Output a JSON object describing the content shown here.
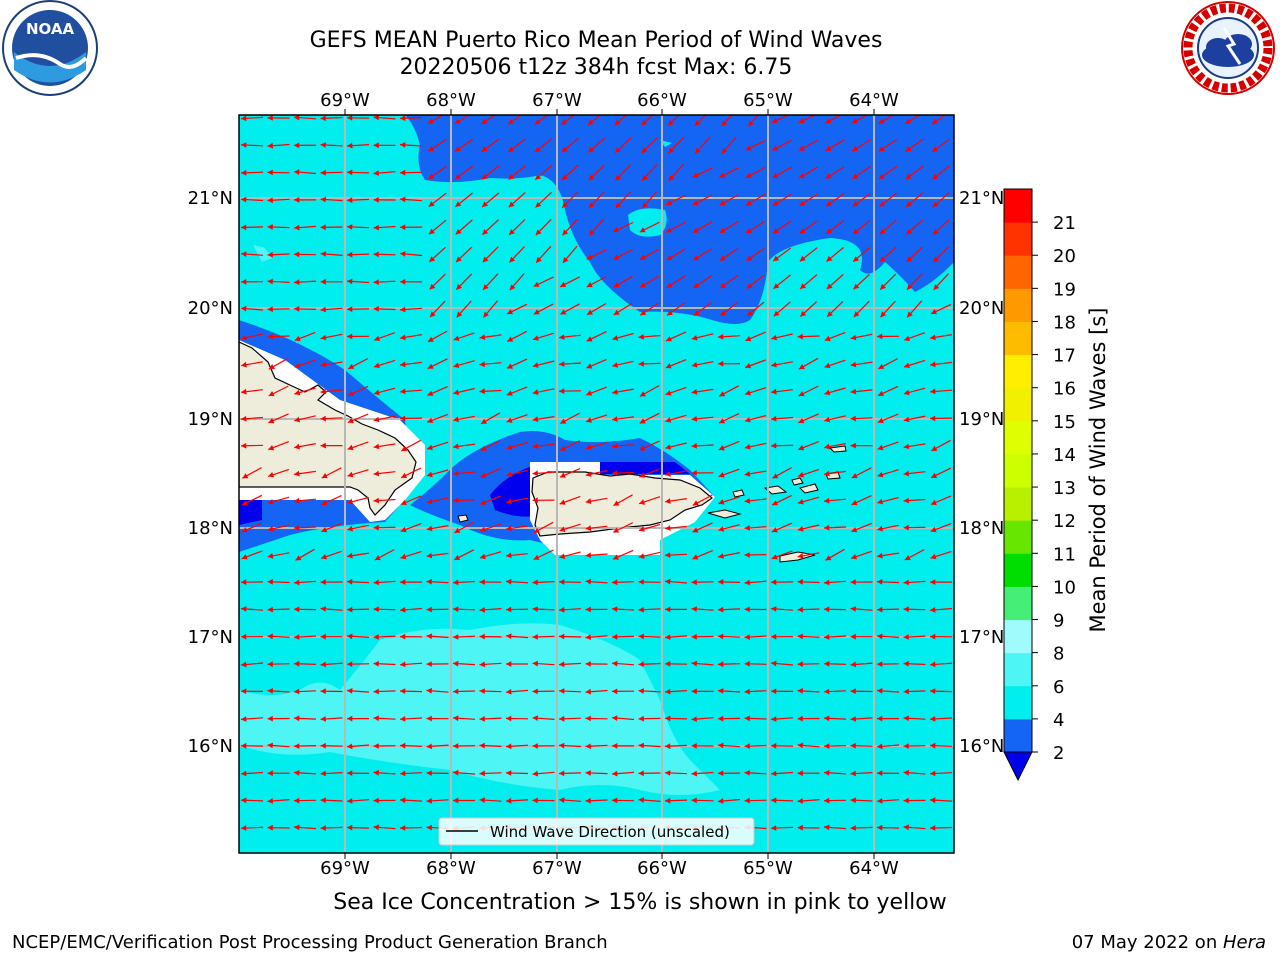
{
  "title": {
    "line1": "GEFS MEAN Puerto Rico Mean Period of Wind Waves",
    "line2": "20220506 t12z 384h fcst   Max: 6.75"
  },
  "logos": {
    "left": "noaa-logo",
    "right": "nws-logo",
    "noaa_text": "NOAA",
    "nws_text": "NATIONAL WEATHER SERVICE"
  },
  "map": {
    "lon_labels": [
      "69°W",
      "68°W",
      "67°W",
      "66°W",
      "65°W",
      "64°W"
    ],
    "lat_labels": [
      "21°N",
      "20°N",
      "19°N",
      "18°N",
      "17°N",
      "16°N"
    ],
    "legend_label": "Wind Wave Direction (unscaled)",
    "grid": true,
    "arrow_color": "#ff0000",
    "land_color": "#eeecdb"
  },
  "colorbar": {
    "title": "Mean Period of Wind Waves [s]",
    "ticks": [
      "2",
      "4",
      "6",
      "8",
      "9",
      "10",
      "11",
      "12",
      "13",
      "14",
      "15",
      "16",
      "17",
      "18",
      "19",
      "20",
      "21"
    ],
    "colors": [
      "#1565f5",
      "#00eeee",
      "#4df5f5",
      "#a0fcfc",
      "#44ee77",
      "#00dd00",
      "#66e600",
      "#b8f000",
      "#ccff00",
      "#ddff00",
      "#f0f000",
      "#ffee00",
      "#ffbb00",
      "#ff9900",
      "#ff6600",
      "#ff3300",
      "#ff0000"
    ],
    "under_color": "#0000ee"
  },
  "note": "Sea Ice Concentration > 15% is shown in pink to yellow",
  "footer": {
    "left": "NCEP/EMC/Verification Post Processing Product Generation Branch",
    "right_prefix": "07 May 2022 on ",
    "right_machine": "Hera"
  }
}
